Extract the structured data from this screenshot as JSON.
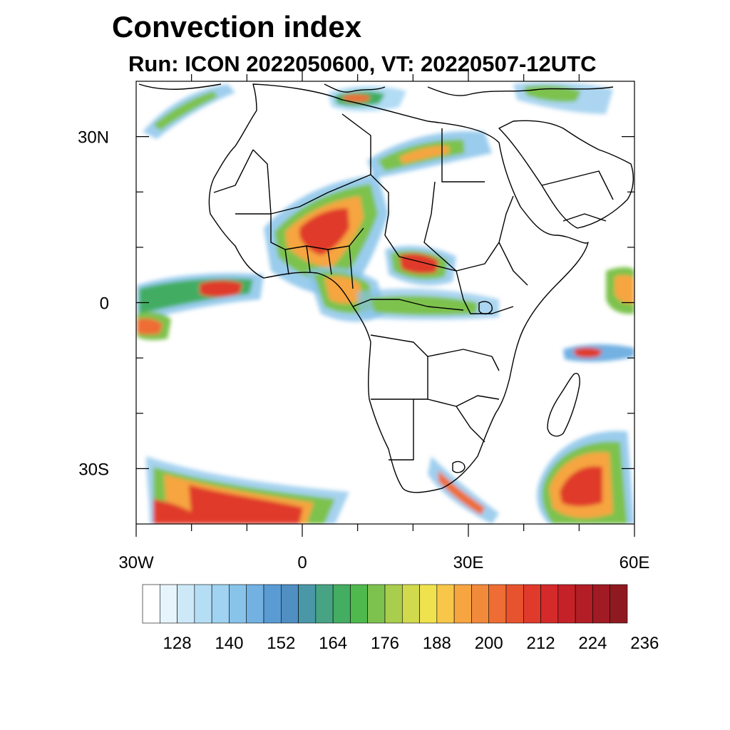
{
  "title": "Convection index",
  "subtitle": "Run: ICON 2022050600,  VT: 20220507-12UTC",
  "map": {
    "projection": "cylindrical-equidistant",
    "lon_range": [
      -30,
      60
    ],
    "lat_range": [
      -40,
      40
    ],
    "lat_ticks": [
      {
        "lat": 30,
        "label": "30N"
      },
      {
        "lat": 0,
        "label": "0"
      },
      {
        "lat": -30,
        "label": "30S"
      }
    ],
    "lon_ticks": [
      {
        "lon": -30,
        "label": "30W"
      },
      {
        "lon": 0,
        "label": "0"
      },
      {
        "lon": 30,
        "label": "30E"
      },
      {
        "lon": 60,
        "label": "60E"
      }
    ]
  },
  "colorbar": {
    "labels": [
      "128",
      "140",
      "152",
      "164",
      "176",
      "188",
      "200",
      "212",
      "224",
      "236"
    ],
    "colors": [
      "#ffffff",
      "#e6f4fb",
      "#cde9f7",
      "#b5def4",
      "#9fd3f1",
      "#88c3ea",
      "#72b1e2",
      "#5a9bd4",
      "#4f8fc2",
      "#4a97a8",
      "#47a384",
      "#43ad62",
      "#4fb94e",
      "#7dc24e",
      "#a9cd4d",
      "#d1d94d",
      "#f0e24f",
      "#f8c74a",
      "#f6a541",
      "#f28a3b",
      "#ee6d34",
      "#e8532f",
      "#e03a2c",
      "#d42a2a",
      "#c42128",
      "#b21d26",
      "#a01b23",
      "#8e1a20"
    ]
  }
}
